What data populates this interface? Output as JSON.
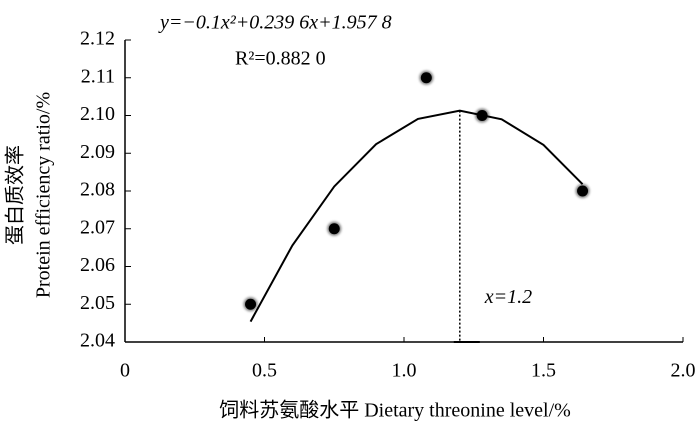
{
  "chart_data": {
    "type": "scatter",
    "equation": "y=−0.1x²+0.239 6x+1.957 8",
    "r_squared": "R²=0.882 0",
    "xlabel": "饲料苏氨酸水平  Dietary threonine level/%",
    "ylabel_cn": "蛋白质效率",
    "ylabel_en": "Protein efficiency ratio/%",
    "xlim": [
      0,
      2.0
    ],
    "ylim": [
      2.04,
      2.12
    ],
    "xticks": [
      0,
      0.5,
      {
        "value": 1.0,
        "label": "1.0"
      },
      1.5,
      {
        "value": 2.0,
        "label": "2.0"
      }
    ],
    "yticks": [
      2.04,
      2.05,
      2.06,
      2.07,
      2.08,
      2.09,
      {
        "value": 2.1,
        "label": "2.10"
      },
      2.11,
      2.12
    ],
    "series": [
      {
        "x": [
          0.45,
          0.75,
          1.08,
          1.28,
          1.64
        ],
        "values": [
          2.05,
          2.07,
          2.11,
          2.1,
          2.08
        ],
        "color": "#000000"
      }
    ],
    "fit": {
      "x": [
        0.45,
        0.6,
        0.75,
        0.9,
        1.05,
        1.2,
        1.35,
        1.5,
        1.64
      ],
      "values": [
        2.0454,
        2.0656,
        2.0812,
        2.0924,
        2.0991,
        2.1013,
        2.099,
        2.0922,
        2.0818
      ],
      "color": "#000000"
    },
    "vline": {
      "x": 1.2,
      "label": "x=1.2"
    }
  }
}
